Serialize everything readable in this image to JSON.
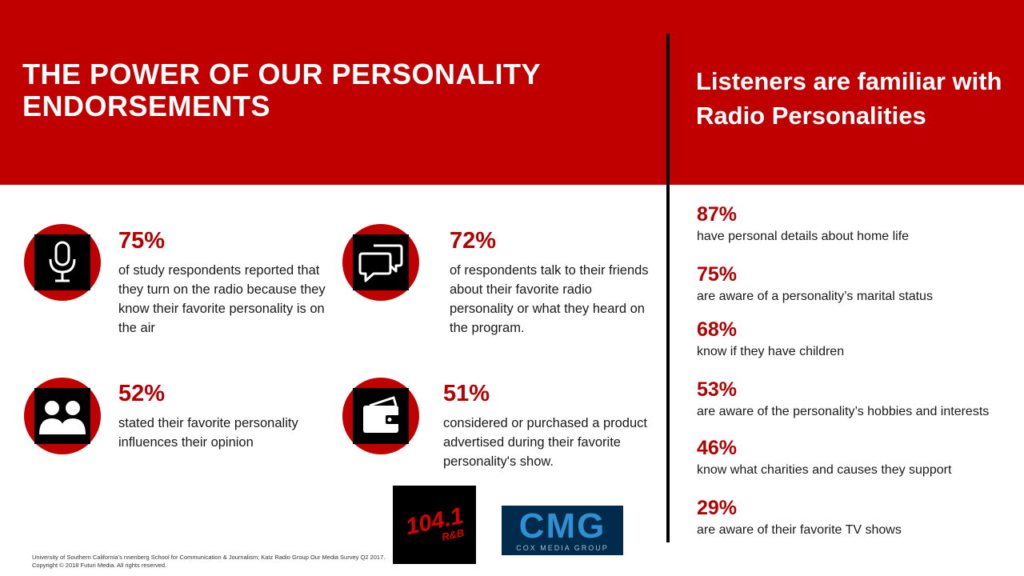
{
  "header": {
    "title": "THE POWER OF OUR PERSONALITY ENDORSEMENTS",
    "side_title": "Listeners are familiar with Radio Personalities"
  },
  "colors": {
    "brand_red": "#c00000",
    "stat_red": "#b30000"
  },
  "stats": [
    {
      "pct": "75%",
      "desc": "of study respondents reported that they turn on the radio because they know their favorite personality is on the air",
      "icon": "microphone-icon"
    },
    {
      "pct": "72%",
      "desc": "of respondents talk to their friends about their favorite radio personality or what they heard on the program.",
      "icon": "chat-bubbles-icon"
    },
    {
      "pct": "52%",
      "desc": "stated their favorite personality influences their opinion",
      "icon": "people-icon"
    },
    {
      "pct": "51%",
      "desc": "considered or purchased a product advertised during their favorite personality's show.",
      "icon": "wallet-icon"
    }
  ],
  "familiar": [
    {
      "pct": "87%",
      "desc": "have personal details about home life"
    },
    {
      "pct": "75%",
      "desc": "are aware of a personality’s marital status"
    },
    {
      "pct": "68%",
      "desc": "know if they have children"
    },
    {
      "pct": "53%",
      "desc": "are aware of the personality’s hobbies and interests"
    },
    {
      "pct": "46%",
      "desc": "know what charities and causes they support"
    },
    {
      "pct": "29%",
      "desc": "are aware of their favorite TV shows"
    }
  ],
  "logos": {
    "station_big": "104.1",
    "station_small": "R&B",
    "cmg_big": "CMG",
    "cmg_small": "COX MEDIA GROUP"
  },
  "footer": {
    "line1": "University of Southern California’s nnenberg School for Communication & Journalism; Katz Radio Group Our Media Survey Q2 2017.",
    "line2": "Copyright © 2018 Futuri Media. All rights reserved."
  }
}
